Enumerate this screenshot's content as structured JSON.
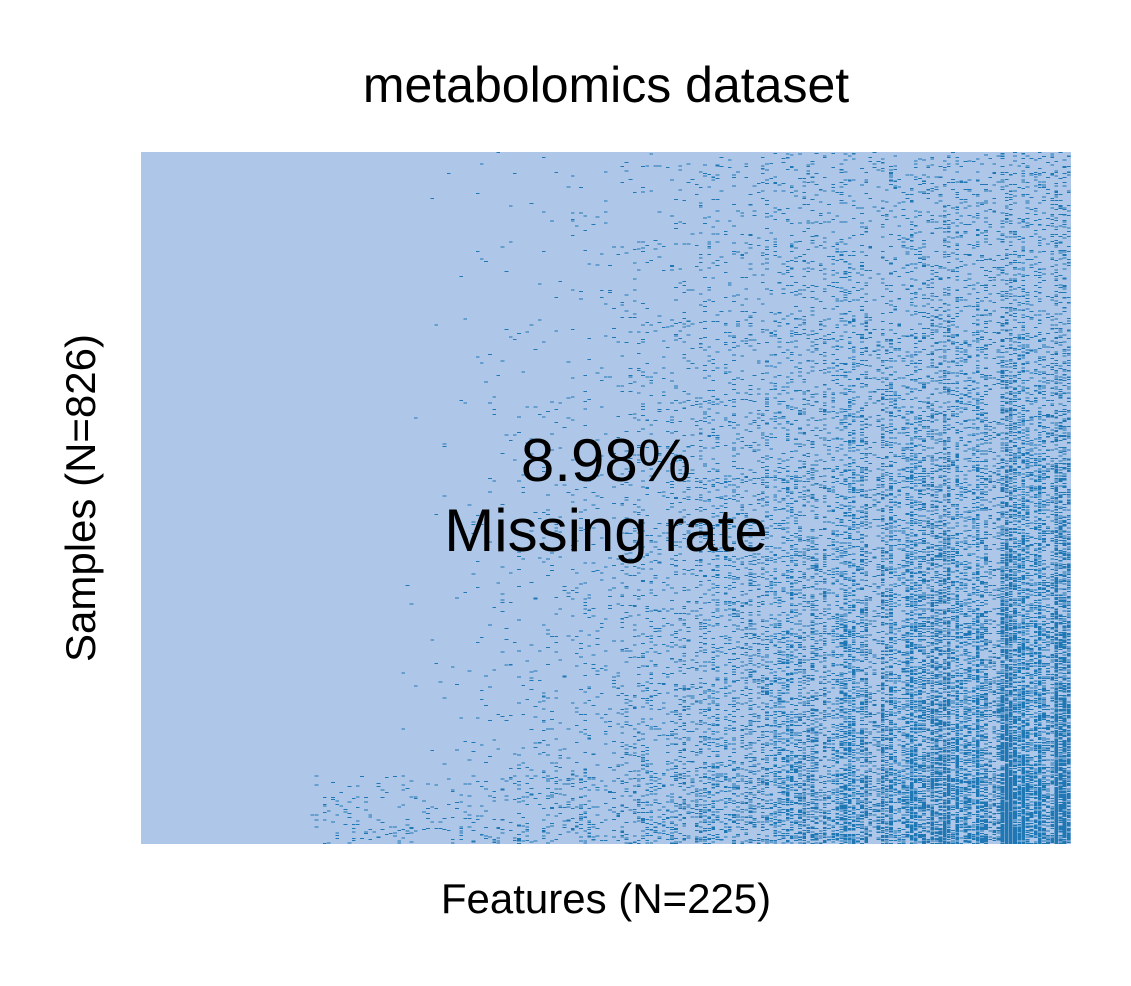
{
  "chart_data": {
    "type": "heatmap",
    "title": "metabolomics dataset",
    "xlabel": "Features (N=225)",
    "ylabel": "Samples (N=826)",
    "n_features": 225,
    "n_samples": 826,
    "missing_rate_value": "8.98%",
    "missing_rate_label": "Missing rate",
    "missing_rate": 0.0898,
    "grid": false,
    "legend": "none",
    "x_ticks": [],
    "y_ticks": [],
    "colors": {
      "observed": "#aec7e8",
      "missing": "#1f77b4"
    },
    "description_of_pattern": {
      "features_sorted_by": "ascending missing rate (left to right)",
      "samples_sorted_by": "ascending missing count (top to bottom)"
    }
  }
}
